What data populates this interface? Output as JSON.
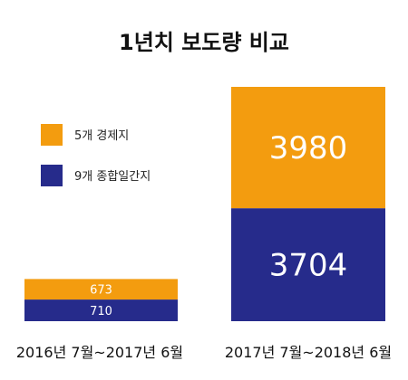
{
  "chart_data": {
    "type": "bar",
    "stacked": true,
    "title": "1년치 보도량 비교",
    "categories": [
      "2016년 7월~2017년 6월",
      "2017년 7월~2018년 6월"
    ],
    "series": [
      {
        "name": "9개 종합일간지",
        "values": [
          710,
          3704
        ],
        "color": "#262b8b"
      },
      {
        "name": "5개 경제지",
        "values": [
          673,
          3980
        ],
        "color": "#f39c0f"
      }
    ],
    "legend_position": "left",
    "ylim": [
      0,
      7684
    ],
    "grid": false,
    "data_labels": true
  }
}
